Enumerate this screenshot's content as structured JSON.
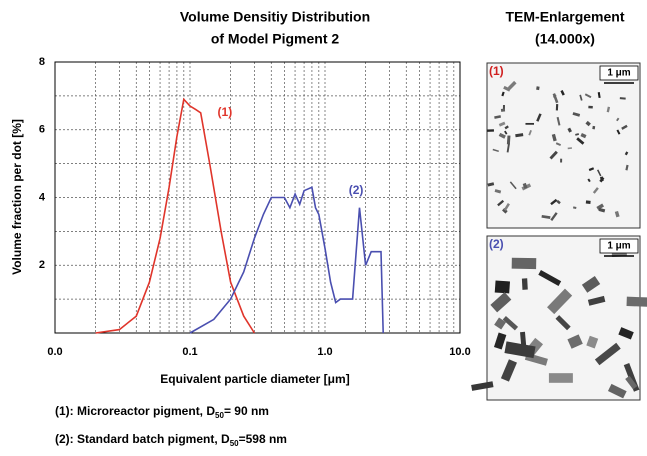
{
  "chart_data": {
    "type": "line",
    "title": [
      "Volume Densitiy Distribution",
      "of Model Pigment 2"
    ],
    "x_label": "Equivalent particle diameter [μm]",
    "y_label": "Volume fraction per dot [%]",
    "log_x": true,
    "grid": true,
    "xlim": [
      0.01,
      10
    ],
    "ylim": [
      0,
      8
    ],
    "xticks": [
      {
        "value": 0.01,
        "label": "0.0"
      },
      0.1,
      {
        "value": 1,
        "label": "1.0"
      },
      {
        "value": 10,
        "label": "10.0"
      }
    ],
    "x_minor_ticks": [
      0.02,
      0.03,
      0.04,
      0.05,
      0.06,
      0.07,
      0.08,
      0.09,
      0.2,
      0.3,
      0.4,
      0.5,
      0.6,
      0.7,
      0.8,
      0.9,
      2,
      3,
      4,
      5,
      6,
      7,
      8,
      9
    ],
    "yticks": [
      2,
      4,
      6,
      8
    ],
    "y_minor_ticks": [
      1,
      3,
      5,
      7
    ],
    "series": [
      {
        "name": "(1)",
        "color": "#e0352b",
        "x": [
          0.02,
          0.03,
          0.04,
          0.05,
          0.06,
          0.07,
          0.08,
          0.09,
          0.1,
          0.11,
          0.12,
          0.14,
          0.17,
          0.2,
          0.25,
          0.3
        ],
        "values": [
          0,
          0.1,
          0.5,
          1.5,
          2.8,
          4.3,
          5.8,
          6.9,
          6.7,
          6.6,
          6.5,
          5,
          3,
          1.5,
          0.5,
          0
        ]
      },
      {
        "name": "(2)",
        "color": "#4a4fb0",
        "x": [
          0.1,
          0.15,
          0.2,
          0.25,
          0.3,
          0.35,
          0.4,
          0.5,
          0.55,
          0.6,
          0.65,
          0.7,
          0.8,
          0.85,
          0.9,
          1.0,
          1.1,
          1.2,
          1.3,
          1.6,
          1.8,
          2.0,
          2.2,
          2.6,
          2.7
        ],
        "values": [
          0,
          0.4,
          1.0,
          1.8,
          2.8,
          3.5,
          4.0,
          4.0,
          3.7,
          4.1,
          3.8,
          4.2,
          4.3,
          3.7,
          3.5,
          2.5,
          1.5,
          0.9,
          1.0,
          1.0,
          3.7,
          2.0,
          2.4,
          2.4,
          0
        ]
      }
    ],
    "annotations": [
      {
        "text": "(1)",
        "x": 0.16,
        "y": 6.5,
        "color": "#e0352b"
      },
      {
        "text": "(2)",
        "x": 1.5,
        "y": 4.2,
        "color": "#4a4fb0"
      }
    ],
    "footnotes": [
      [
        "(1): Microreactor pigment, D",
        "50",
        "= 90 nm"
      ],
      [
        "(2): Standard batch pigment, D",
        "50",
        "=598 nm"
      ]
    ]
  },
  "tem": {
    "title": [
      "TEM-Enlargement",
      "(14.000x)"
    ],
    "panels": [
      {
        "label": "(1)",
        "scale": "1 μm"
      },
      {
        "label": "(2)",
        "scale": "1 μm"
      }
    ]
  }
}
